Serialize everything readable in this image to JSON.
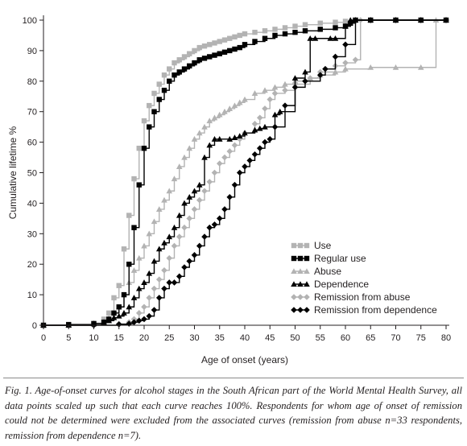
{
  "chart_data": {
    "type": "line",
    "step": true,
    "xlabel": "Age of onset (years)",
    "ylabel": "Cumulative lifetime %",
    "xlim": [
      0,
      80
    ],
    "ylim": [
      0,
      100
    ],
    "xticks": [
      0,
      5,
      10,
      15,
      20,
      25,
      30,
      35,
      40,
      45,
      50,
      55,
      60,
      65,
      70,
      75,
      80
    ],
    "yticks": [
      0,
      10,
      20,
      30,
      40,
      50,
      60,
      70,
      80,
      90,
      100
    ],
    "grid": false,
    "legend_position": "bottom-right",
    "series": [
      {
        "name": "Use",
        "color": "#b3b3b3",
        "marker": "square",
        "x": [
          0,
          5,
          10,
          12,
          13,
          14,
          15,
          16,
          17,
          18,
          19,
          20,
          21,
          22,
          23,
          24,
          25,
          26,
          27,
          28,
          29,
          30,
          31,
          32,
          33,
          34,
          35,
          36,
          37,
          38,
          39,
          40,
          42,
          44,
          46,
          48,
          50,
          52,
          55,
          58,
          60,
          62,
          65,
          70,
          75,
          80
        ],
        "y": [
          0,
          0.3,
          0.7,
          2,
          4,
          9,
          13,
          25,
          36,
          48,
          58,
          67,
          72,
          76,
          79,
          82,
          84,
          86,
          87,
          88,
          89,
          90,
          91,
          91.5,
          92,
          92.5,
          93,
          93.5,
          94,
          94.5,
          95,
          95.5,
          96,
          96.5,
          97,
          97.5,
          98,
          98.5,
          99,
          99.3,
          99.6,
          100,
          100,
          100,
          100,
          100
        ]
      },
      {
        "name": "Regular use",
        "color": "#000000",
        "marker": "square",
        "x": [
          0,
          5,
          10,
          12,
          13,
          14,
          15,
          16,
          17,
          18,
          19,
          20,
          21,
          22,
          23,
          24,
          25,
          26,
          27,
          28,
          29,
          30,
          31,
          32,
          33,
          34,
          35,
          36,
          37,
          38,
          39,
          40,
          42,
          44,
          46,
          48,
          50,
          52,
          55,
          58,
          60,
          61,
          62,
          65,
          70,
          75,
          80
        ],
        "y": [
          0,
          0.2,
          0.5,
          1,
          2,
          4,
          6,
          10,
          20,
          32,
          46,
          58,
          65,
          70,
          74,
          77,
          80,
          82,
          83,
          84,
          85,
          86,
          87,
          87.5,
          88,
          88.5,
          89,
          89.5,
          90,
          90.5,
          91,
          92,
          93,
          94,
          95,
          95.5,
          96,
          96.5,
          97,
          97.5,
          98,
          99,
          100,
          100,
          100,
          100,
          100
        ]
      },
      {
        "name": "Abuse",
        "color": "#b3b3b3",
        "marker": "triangle",
        "x": [
          0,
          5,
          10,
          12,
          13,
          14,
          15,
          16,
          17,
          18,
          19,
          20,
          21,
          22,
          23,
          24,
          25,
          26,
          27,
          28,
          29,
          30,
          31,
          32,
          33,
          34,
          35,
          36,
          37,
          38,
          39,
          40,
          42,
          44,
          46,
          48,
          50,
          53,
          55,
          58,
          60,
          65,
          70,
          75,
          78,
          80
        ],
        "y": [
          0,
          0,
          0.5,
          1,
          2,
          4,
          6,
          10,
          14,
          18,
          22,
          26,
          30,
          34,
          38,
          41,
          44,
          48,
          52,
          55,
          58,
          61,
          63,
          65,
          67,
          68,
          69,
          70,
          71,
          72,
          73,
          74,
          76,
          77,
          78,
          79,
          80,
          81,
          82,
          83,
          84,
          84.5,
          84.5,
          84.5,
          100,
          100
        ]
      },
      {
        "name": "Dependence",
        "color": "#000000",
        "marker": "triangle",
        "x": [
          0,
          5,
          10,
          12,
          13,
          14,
          15,
          16,
          17,
          18,
          19,
          20,
          21,
          22,
          23,
          24,
          25,
          26,
          27,
          28,
          29,
          30,
          31,
          32,
          33,
          34,
          35,
          37,
          38,
          39,
          40,
          42,
          43,
          44,
          46,
          47,
          50,
          52,
          53,
          54,
          57,
          58,
          60,
          61,
          62,
          65,
          70,
          75,
          80
        ],
        "y": [
          0,
          0,
          0.5,
          1,
          1.5,
          2.5,
          3,
          4,
          6,
          9,
          12,
          14,
          17,
          21,
          25,
          27,
          29,
          32,
          36,
          40,
          42,
          44,
          46,
          55,
          59,
          61,
          61,
          61,
          61.5,
          62,
          63,
          64,
          64.5,
          65,
          69,
          70,
          81,
          83,
          94,
          94,
          94,
          94,
          98,
          100,
          100,
          100,
          100,
          100,
          100
        ]
      },
      {
        "name": "Remission from abuse",
        "color": "#b3b3b3",
        "marker": "diamond",
        "x": [
          0,
          5,
          10,
          15,
          17,
          18,
          19,
          20,
          21,
          22,
          23,
          24,
          25,
          26,
          27,
          28,
          29,
          30,
          31,
          32,
          33,
          34,
          35,
          36,
          37,
          38,
          39,
          40,
          42,
          43,
          44,
          45,
          46,
          48,
          50,
          53,
          55,
          58,
          60,
          62,
          63,
          65,
          70,
          75,
          80
        ],
        "y": [
          0,
          0,
          0,
          0.5,
          1,
          2,
          4,
          6,
          9,
          12,
          15,
          18,
          22,
          26,
          29,
          32,
          35,
          38,
          41,
          44,
          47,
          50,
          53,
          55,
          57,
          59,
          61,
          63,
          66,
          68,
          71,
          74,
          76,
          77,
          79,
          81,
          83,
          85,
          86,
          87,
          100,
          100,
          100,
          100,
          100
        ]
      },
      {
        "name": "Remission from dependence",
        "color": "#000000",
        "marker": "diamond",
        "x": [
          0,
          5,
          10,
          15,
          17,
          18,
          19,
          20,
          21,
          22,
          23,
          24,
          25,
          26,
          27,
          28,
          29,
          30,
          31,
          32,
          33,
          34,
          35,
          36,
          37,
          38,
          39,
          40,
          41,
          42,
          43,
          44,
          45,
          46,
          48,
          50,
          52,
          55,
          56,
          58,
          60,
          62,
          65,
          70,
          75,
          80
        ],
        "y": [
          0,
          0,
          0,
          0.3,
          0.5,
          1,
          1.5,
          2,
          3,
          5,
          9,
          12,
          14,
          14,
          16,
          19,
          21,
          23,
          26,
          29,
          32,
          33,
          35,
          38,
          42,
          46,
          50,
          52,
          54,
          56,
          58,
          60,
          61,
          65,
          72,
          78,
          80,
          82,
          84,
          88,
          92,
          100,
          100,
          100,
          100,
          100
        ]
      }
    ]
  },
  "caption": {
    "lead": "Fig. 1.",
    "text": "Age-of-onset curves for alcohol stages in the South African part of the World Mental Health Survey, all data points scaled up such that each curve reaches 100%. Respondents for whom age of onset of remission could not be determined were excluded from the associated curves (remission from abuse n=33 respondents, remission from dependence n=7)."
  }
}
